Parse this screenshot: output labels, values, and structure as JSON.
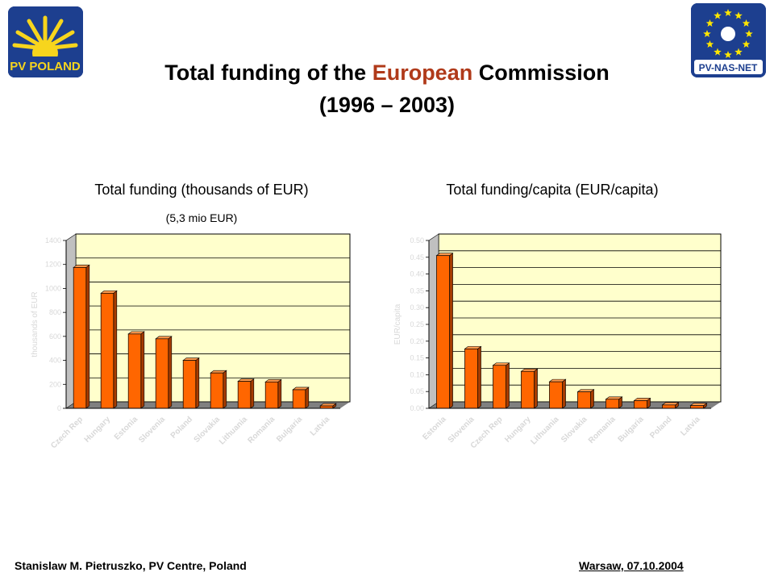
{
  "header": {
    "title_prefix": "Total funding of the ",
    "title_highlight": "European",
    "title_suffix": " Commission",
    "title_line2": "(1996 – 2003)"
  },
  "logos": {
    "left_text": "PV POLAND",
    "right_text": "PV-NAS-NET"
  },
  "footer": {
    "left": "Stanislaw M. Pietruszko, PV Centre, Poland",
    "right": "Warsaw,  07.10.2004"
  },
  "colors": {
    "bar": "#ff6600",
    "bar_dark": "#a63c00",
    "plot_bg": "#ffffcc",
    "title_highlight": "#b03a1a"
  },
  "chart_data": [
    {
      "type": "bar",
      "title": "Total funding (thousands of EUR)",
      "subtitle": "(5,3 mio EUR)",
      "ylabel": "thousands of EUR",
      "categories": [
        "Czech Rep",
        "Hungary",
        "Estonia",
        "Slovenia",
        "Poland",
        "Slovakia",
        "Lithuania",
        "Romania",
        "Bulgaria",
        "Latvia"
      ],
      "values": [
        1175,
        960,
        620,
        580,
        400,
        295,
        225,
        220,
        155,
        20
      ],
      "ylim": [
        0,
        1400
      ],
      "yticks": [
        "0",
        "200",
        "400",
        "600",
        "800",
        "1000",
        "1200",
        "1400"
      ]
    },
    {
      "type": "bar",
      "title": "Total funding/capita (EUR/capita)",
      "ylabel": "EUR/capita",
      "categories": [
        "Estonia",
        "Slovenia",
        "Czech Rep",
        "Hungary",
        "Lithuania",
        "Slovakia",
        "Romania",
        "Bulgaria",
        "Poland",
        "Latvia"
      ],
      "values": [
        0.455,
        0.177,
        0.128,
        0.11,
        0.079,
        0.049,
        0.027,
        0.023,
        0.01,
        0.008
      ],
      "ylim": [
        0,
        0.5
      ],
      "yticks": [
        "0.00",
        "0.05",
        "0.10",
        "0.15",
        "0.20",
        "0.25",
        "0.30",
        "0.35",
        "0.40",
        "0.45",
        "0.50"
      ]
    }
  ]
}
